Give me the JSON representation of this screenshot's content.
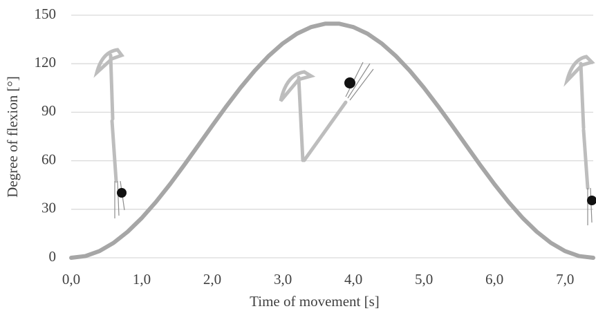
{
  "chart_data": {
    "type": "line",
    "x_label": "Time of movement [s]",
    "y_label": "Degree of flexion [°]",
    "x": [
      0,
      0.2,
      0.4,
      0.6,
      0.8,
      1.0,
      1.2,
      1.4,
      1.6,
      1.8,
      2.0,
      2.2,
      2.4,
      2.6,
      2.8,
      3.0,
      3.2,
      3.4,
      3.6,
      3.8,
      4.0,
      4.2,
      4.4,
      4.6,
      4.8,
      5.0,
      5.2,
      5.4,
      5.6,
      5.8,
      6.0,
      6.2,
      6.4,
      6.6,
      6.8,
      7.0,
      7.2,
      7.4
    ],
    "series": [
      {
        "color": "#a6a6a6",
        "values": [
          0,
          1.04,
          4.14,
          9.21,
          16.11,
          24.6,
          34.48,
          45.47,
          57.23,
          69.43,
          81.71,
          93.73,
          105.14,
          115.61,
          124.86,
          132.56,
          138.57,
          142.66,
          144.74,
          144.74,
          142.66,
          138.57,
          132.56,
          124.86,
          115.61,
          105.14,
          93.73,
          81.71,
          69.43,
          57.23,
          45.47,
          34.48,
          24.6,
          16.11,
          9.21,
          4.14,
          1.04,
          0
        ]
      }
    ],
    "xlim": [
      0,
      7.4
    ],
    "ylim": [
      0,
      150
    ],
    "xticks": [
      {
        "value": 0,
        "label": "0,0"
      },
      {
        "value": 1,
        "label": "1,0"
      },
      {
        "value": 2,
        "label": "2,0"
      },
      {
        "value": 3,
        "label": "3,0"
      },
      {
        "value": 4,
        "label": "4,0"
      },
      {
        "value": 5,
        "label": "5,0"
      },
      {
        "value": 6,
        "label": "6,0"
      },
      {
        "value": 7,
        "label": "7,0"
      }
    ],
    "yticks": [
      0,
      30,
      60,
      90,
      120,
      150
    ],
    "grid": true
  }
}
